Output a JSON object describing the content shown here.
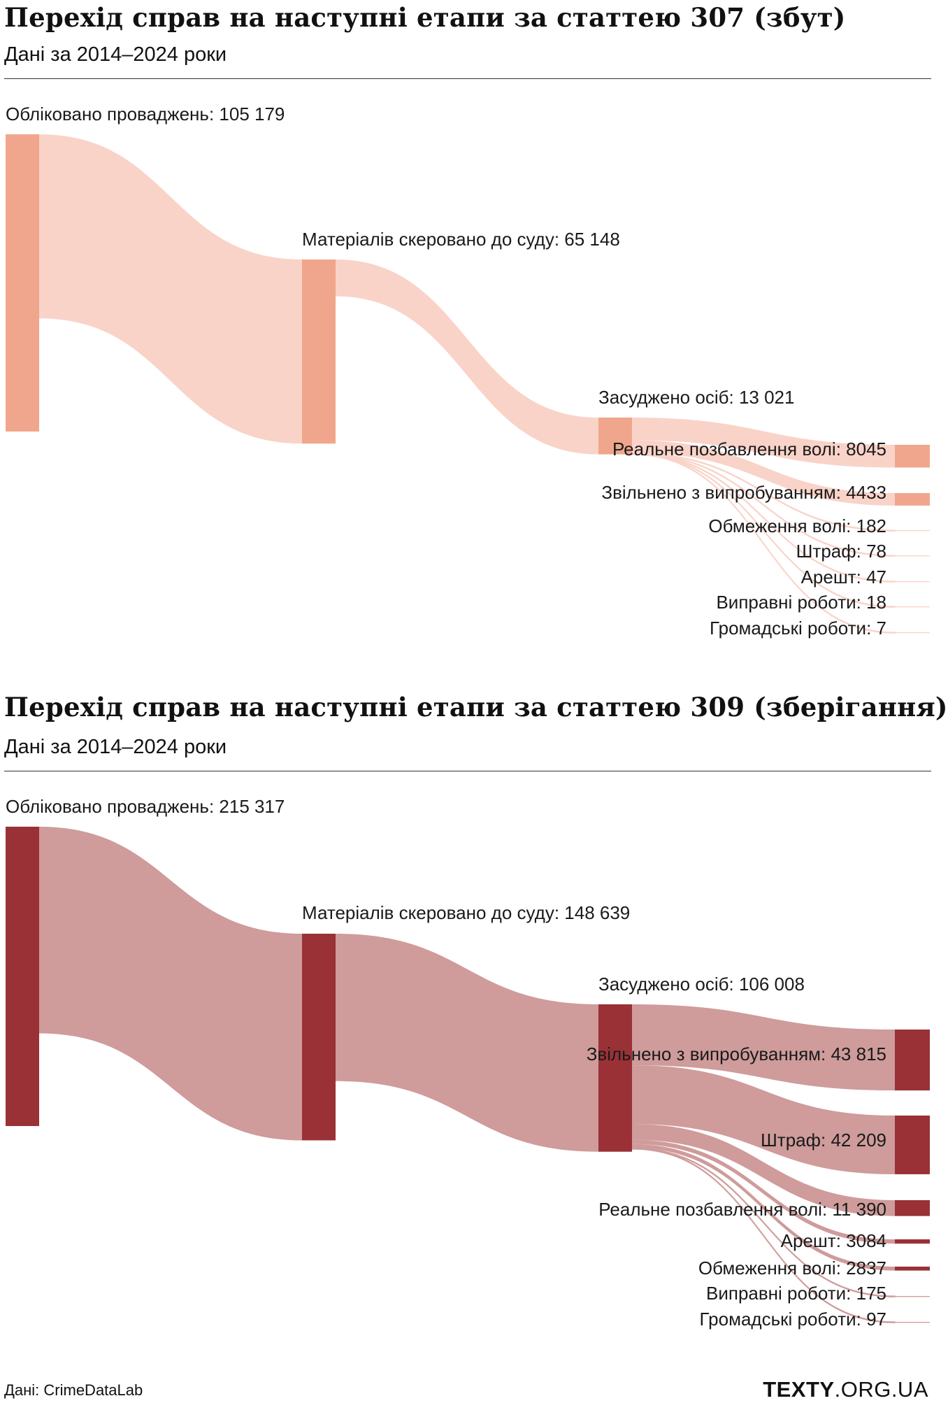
{
  "chart_data": [
    {
      "type": "sankey",
      "title": "Перехід справ на наступні етапи за статтею 307 (збут)",
      "subtitle": "Дані за 2014–2024 роки",
      "colors": {
        "node": "#f0a68c",
        "link": "#f9d3c8"
      },
      "stages": [
        {
          "label": "Обліковано проваджень",
          "value_text": "105 179",
          "value": 105179
        },
        {
          "label": "Матеріалів скеровано до суду",
          "value_text": "65 148",
          "value": 65148
        },
        {
          "label": "Засуджено осіб",
          "value_text": "13 021",
          "value": 13021
        }
      ],
      "outcomes": [
        {
          "label": "Реальне позбавлення волі",
          "value_text": "8045",
          "value": 8045
        },
        {
          "label": "Звільнено з випробуванням",
          "value_text": "4433",
          "value": 4433
        },
        {
          "label": "Обмеження волі",
          "value_text": "182",
          "value": 182
        },
        {
          "label": "Штраф",
          "value_text": "78",
          "value": 78
        },
        {
          "label": "Арешт",
          "value_text": "47",
          "value": 47
        },
        {
          "label": "Виправні роботи",
          "value_text": "18",
          "value": 18
        },
        {
          "label": "Громадські роботи",
          "value_text": "7",
          "value": 7
        }
      ]
    },
    {
      "type": "sankey",
      "title": "Перехід справ на наступні етапи за статтею 309 (зберігання)",
      "subtitle": "Дані за 2014–2024 роки",
      "colors": {
        "node": "#993136",
        "link": "#cf9b9b"
      },
      "stages": [
        {
          "label": "Обліковано проваджень",
          "value_text": "215 317",
          "value": 215317
        },
        {
          "label": "Матеріалів скеровано до суду",
          "value_text": "148 639",
          "value": 148639
        },
        {
          "label": "Засуджено осіб",
          "value_text": "106 008",
          "value": 106008
        }
      ],
      "outcomes": [
        {
          "label": "Звільнено з випробуванням",
          "value_text": "43 815",
          "value": 43815
        },
        {
          "label": "Штраф",
          "value_text": "42 209",
          "value": 42209
        },
        {
          "label": "Реальне позбавлення волі",
          "value_text": "11 390",
          "value": 11390
        },
        {
          "label": "Арешт",
          "value_text": "3084",
          "value": 3084
        },
        {
          "label": "Обмеження волі",
          "value_text": "2837",
          "value": 2837
        },
        {
          "label": "Виправні роботи",
          "value_text": "175",
          "value": 175
        },
        {
          "label": "Громадські роботи",
          "value_text": "97",
          "value": 97
        }
      ]
    }
  ],
  "footer": {
    "source": "Дані: CrimeDataLab",
    "logo_bold": "TEXTY",
    "logo_rest": ".ORG.UA"
  }
}
